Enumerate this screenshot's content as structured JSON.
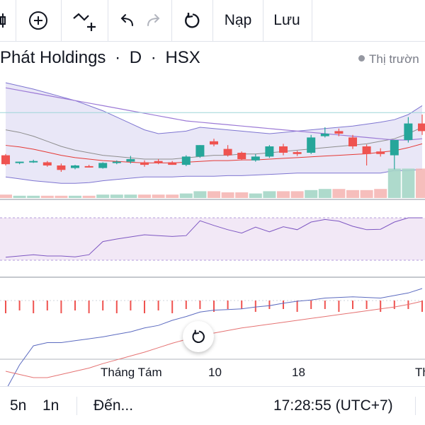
{
  "toolbar": {
    "reload_label": "Nạp",
    "save_label": "Lưu",
    "icons": [
      "indicator-icon",
      "add-icon",
      "compare-icon",
      "undo-icon",
      "redo-icon",
      "refresh-icon"
    ]
  },
  "header": {
    "symbol_name": "Phát Holdings",
    "sep1": "·",
    "interval": "D",
    "sep2": "·",
    "exchange": "HSX",
    "market_status": "Thị trườn"
  },
  "xaxis": {
    "labels": [
      "Tháng Tám",
      "10",
      "18",
      "Th"
    ]
  },
  "bottom_bar": {
    "range_5d": "5n",
    "range_1d": "1n",
    "goto": "Đến...",
    "time": "17:28:55 (UTC+7)"
  },
  "colors": {
    "up": "#26a69a",
    "down": "#ef5350",
    "bb_fill": "#e9e7f7",
    "bb_line": "#7e75d1",
    "rsi_fill": "#f2e8f6",
    "rsi_line": "#7e57c2",
    "macd_line": "#5c6bc0",
    "signal_line": "#e57373",
    "ma_line": "#e53935"
  },
  "chart_data": {
    "type": "candlestick",
    "candles": [
      {
        "o": 6,
        "h": 8,
        "l": -10,
        "c": -8
      },
      {
        "o": -6,
        "h": -4,
        "l": -8,
        "c": -4
      },
      {
        "o": -3,
        "h": -1,
        "l": -6,
        "c": -3
      },
      {
        "o": -5,
        "h": -3,
        "l": -12,
        "c": -10
      },
      {
        "o": -10,
        "h": -7,
        "l": -20,
        "c": -17
      },
      {
        "o": -14,
        "h": -9,
        "l": -16,
        "c": -10
      },
      {
        "o": -11,
        "h": -9,
        "l": -13,
        "c": -12
      },
      {
        "o": -14,
        "h": -5,
        "l": -15,
        "c": -6
      },
      {
        "o": -6,
        "h": -2,
        "l": -8,
        "c": -4
      },
      {
        "o": -4,
        "h": 5,
        "l": -7,
        "c": 0
      },
      {
        "o": -5,
        "h": -2,
        "l": -12,
        "c": -9
      },
      {
        "o": -3,
        "h": 0,
        "l": -8,
        "c": -6
      },
      {
        "o": -5,
        "h": -3,
        "l": -9,
        "c": -9
      },
      {
        "o": -9,
        "h": 6,
        "l": -11,
        "c": 4
      },
      {
        "o": 4,
        "h": 22,
        "l": 2,
        "c": 22
      },
      {
        "o": 28,
        "h": 32,
        "l": 20,
        "c": 23
      },
      {
        "o": 16,
        "h": 22,
        "l": 4,
        "c": 6
      },
      {
        "o": 10,
        "h": 12,
        "l": -2,
        "c": 0
      },
      {
        "o": -2,
        "h": 8,
        "l": -4,
        "c": 4
      },
      {
        "o": 4,
        "h": 22,
        "l": 2,
        "c": 20
      },
      {
        "o": 20,
        "h": 24,
        "l": 6,
        "c": 10
      },
      {
        "o": 11,
        "h": 13,
        "l": 5,
        "c": 8
      },
      {
        "o": 10,
        "h": 38,
        "l": 8,
        "c": 34
      },
      {
        "o": 36,
        "h": 50,
        "l": 34,
        "c": 40
      },
      {
        "o": 44,
        "h": 48,
        "l": 36,
        "c": 40
      },
      {
        "o": 34,
        "h": 38,
        "l": 16,
        "c": 20
      },
      {
        "o": 20,
        "h": 23,
        "l": -10,
        "c": 8
      },
      {
        "o": 12,
        "h": 17,
        "l": 4,
        "c": 8
      },
      {
        "o": 6,
        "h": 30,
        "l": -16,
        "c": 30
      },
      {
        "o": 30,
        "h": 66,
        "l": 26,
        "c": 56
      },
      {
        "o": 56,
        "h": 70,
        "l": 38,
        "c": 44
      }
    ],
    "volume": [
      3,
      2,
      2,
      2,
      2,
      2,
      2,
      3,
      3,
      3,
      3,
      3,
      3,
      4,
      6,
      6,
      5,
      5,
      4,
      6,
      6,
      6,
      7,
      8,
      8,
      7,
      7,
      8,
      26,
      26,
      26
    ],
    "bollinger": {
      "upper": [
        120,
        115,
        110,
        104,
        98,
        92,
        84,
        76,
        66,
        56,
        46,
        40,
        42,
        44,
        50,
        48,
        46,
        44,
        42,
        40,
        42,
        44,
        46,
        48,
        50,
        52,
        55,
        58,
        62,
        70,
        84
      ],
      "middle": [
        46,
        42,
        36,
        28,
        20,
        14,
        10,
        6,
        4,
        2,
        0,
        0,
        0,
        2,
        4,
        6,
        6,
        8,
        8,
        10,
        12,
        14,
        16,
        18,
        20,
        22,
        24,
        28,
        32,
        40,
        50
      ],
      "lower": [
        -28,
        -31,
        -34,
        -36,
        -38,
        -38,
        -37,
        -34,
        -32,
        -30,
        -28,
        -28,
        -28,
        -27,
        -27,
        -27,
        -26,
        -26,
        -25,
        -24,
        -23,
        -22,
        -22,
        -22,
        -22,
        -22,
        -22,
        -22,
        -18,
        -18,
        -16
      ]
    },
    "ma_long": [
      112,
      108,
      104,
      100,
      96,
      92,
      88,
      84,
      80,
      76,
      72,
      68,
      64,
      60,
      58,
      56,
      54,
      52,
      50,
      48,
      46,
      44,
      42,
      40,
      38,
      36,
      34,
      32,
      30,
      30,
      32
    ],
    "rsi": [
      27,
      30,
      33,
      30,
      30,
      28,
      33,
      44,
      50,
      55,
      60,
      58,
      56,
      58,
      93,
      82,
      72,
      64,
      78,
      67,
      79,
      72,
      90,
      96,
      92,
      80,
      72,
      73,
      90,
      100,
      100
    ],
    "macd": [
      -8,
      -4,
      -1,
      -0.5,
      -0.5,
      -0.2,
      0.1,
      0.4,
      0.8,
      1.2,
      1.8,
      2.2,
      3.0,
      3.6,
      4.3,
      4.6,
      4.7,
      4.8,
      5.1,
      5.3,
      5.7,
      6.0,
      6.2,
      6.5,
      6.6,
      6.7,
      6.6,
      6.5,
      6.9,
      7.3,
      8.0
    ],
    "signal": [
      -5,
      -5.5,
      -6,
      -6,
      -5.5,
      -5,
      -4.5,
      -3.8,
      -3.2,
      -2.6,
      -2.0,
      -1.3,
      -0.6,
      0,
      0.6,
      1.0,
      1.4,
      1.8,
      2.1,
      2.4,
      2.7,
      3.0,
      3.3,
      3.6,
      3.9,
      4.2,
      4.5,
      4.8,
      5.1,
      5.5,
      6.0
    ],
    "hist": [
      1,
      1,
      1,
      1,
      1,
      1,
      1,
      1,
      1,
      1,
      1,
      1,
      1,
      2,
      2,
      2,
      2,
      2,
      2,
      2,
      2,
      2,
      2,
      2,
      2,
      2,
      2,
      2,
      2,
      2,
      2
    ]
  }
}
